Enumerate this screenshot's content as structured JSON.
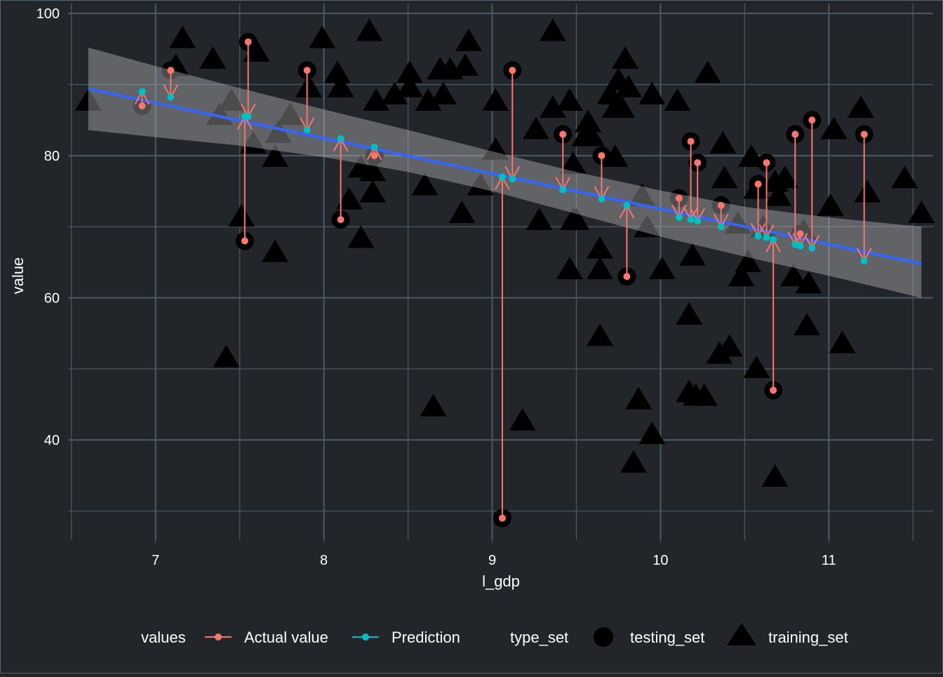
{
  "chart_data": {
    "type": "scatter",
    "title": "",
    "xlabel": "l_gdp",
    "ylabel": "value",
    "xlim": [
      6.48,
      11.62
    ],
    "ylim": [
      25.9,
      101.4
    ],
    "x_ticks": [
      7,
      8,
      9,
      10,
      11
    ],
    "x_tick_labels": [
      "7",
      "8",
      "9",
      "10",
      "11"
    ],
    "y_ticks": [
      40,
      60,
      80,
      100
    ],
    "y_tick_labels": [
      "40",
      "60",
      "80",
      "100"
    ],
    "grid": true,
    "colors": {
      "background": "#22262b",
      "grid": "#4a5a66",
      "actual": "#F8766D",
      "prediction": "#00BFC4",
      "fit_line": "#3366FF",
      "points": "#000000"
    },
    "regression": {
      "intercept": 122.2,
      "slope": -4.97,
      "x_range": [
        6.6,
        11.55
      ]
    },
    "confidence_band": {
      "x": [
        6.6,
        7.0,
        7.5,
        8.0,
        8.5,
        9.0,
        9.5,
        10.0,
        10.5,
        11.0,
        11.55
      ],
      "upper": [
        95.2,
        92.6,
        89.5,
        86.5,
        83.6,
        80.6,
        77.7,
        75.1,
        72.8,
        71.3,
        70.0
      ],
      "lower": [
        83.6,
        82.6,
        81.4,
        79.8,
        77.7,
        75.0,
        71.8,
        68.6,
        65.8,
        63.1,
        60.0
      ]
    },
    "testing_set": [
      {
        "x": 6.92,
        "actual": 87,
        "prediction": 89.0
      },
      {
        "x": 7.09,
        "actual": 92,
        "prediction": 88.2
      },
      {
        "x": 7.55,
        "actual": 96,
        "prediction": 85.5
      },
      {
        "x": 7.53,
        "actual": 68,
        "prediction": 85.5
      },
      {
        "x": 7.9,
        "actual": 92,
        "prediction": 83.6
      },
      {
        "x": 8.1,
        "actual": 71,
        "prediction": 82.4
      },
      {
        "x": 8.3,
        "actual": 80,
        "prediction": 81.2
      },
      {
        "x": 9.06,
        "actual": 29,
        "prediction": 77.0
      },
      {
        "x": 9.12,
        "actual": 92,
        "prediction": 76.7
      },
      {
        "x": 9.42,
        "actual": 83,
        "prediction": 75.2
      },
      {
        "x": 9.65,
        "actual": 80,
        "prediction": 73.9
      },
      {
        "x": 9.8,
        "actual": 63,
        "prediction": 73.0
      },
      {
        "x": 10.11,
        "actual": 74,
        "prediction": 71.3
      },
      {
        "x": 10.18,
        "actual": 82,
        "prediction": 71.0
      },
      {
        "x": 10.22,
        "actual": 79,
        "prediction": 70.8
      },
      {
        "x": 10.36,
        "actual": 73,
        "prediction": 70.0
      },
      {
        "x": 10.58,
        "actual": 76,
        "prediction": 68.7
      },
      {
        "x": 10.63,
        "actual": 79,
        "prediction": 68.5
      },
      {
        "x": 10.67,
        "actual": 47,
        "prediction": 68.2
      },
      {
        "x": 10.8,
        "actual": 83,
        "prediction": 67.5
      },
      {
        "x": 10.83,
        "actual": 69,
        "prediction": 67.3
      },
      {
        "x": 10.9,
        "actual": 85,
        "prediction": 67.0
      },
      {
        "x": 11.21,
        "actual": 83,
        "prediction": 65.2
      }
    ],
    "training_set": [
      [
        6.6,
        87.6
      ],
      [
        7.16,
        96.4
      ],
      [
        7.12,
        92.5
      ],
      [
        7.34,
        93.5
      ],
      [
        7.38,
        85.6
      ],
      [
        7.45,
        87.6
      ],
      [
        7.42,
        51.5
      ],
      [
        7.51,
        71.3
      ],
      [
        7.6,
        94.5
      ],
      [
        7.58,
        81.6
      ],
      [
        7.71,
        79.7
      ],
      [
        7.73,
        83.1
      ],
      [
        7.8,
        85.6
      ],
      [
        7.71,
        66.3
      ],
      [
        7.99,
        96.4
      ],
      [
        8.08,
        91.5
      ],
      [
        8.1,
        89.5
      ],
      [
        7.91,
        89.5
      ],
      [
        8.27,
        97.4
      ],
      [
        8.22,
        78.2
      ],
      [
        8.29,
        77.7
      ],
      [
        8.31,
        87.6
      ],
      [
        8.29,
        74.7
      ],
      [
        8.15,
        73.7
      ],
      [
        8.22,
        68.3
      ],
      [
        8.42,
        88.5
      ],
      [
        8.51,
        91.5
      ],
      [
        8.51,
        89.5
      ],
      [
        8.62,
        87.6
      ],
      [
        8.6,
        75.7
      ],
      [
        8.65,
        44.6
      ],
      [
        8.69,
        92.0
      ],
      [
        8.71,
        88.5
      ],
      [
        8.75,
        92.0
      ],
      [
        8.84,
        92.5
      ],
      [
        8.86,
        96.0
      ],
      [
        8.82,
        71.8
      ],
      [
        9.02,
        87.6
      ],
      [
        9.02,
        80.7
      ],
      [
        8.93,
        75.7
      ],
      [
        9.18,
        42.6
      ],
      [
        9.26,
        83.6
      ],
      [
        9.28,
        70.8
      ],
      [
        9.36,
        97.4
      ],
      [
        9.36,
        86.6
      ],
      [
        9.46,
        87.6
      ],
      [
        9.46,
        63.9
      ],
      [
        9.48,
        78.7
      ],
      [
        9.48,
        70.8
      ],
      [
        9.5,
        70.8
      ],
      [
        9.55,
        82.6
      ],
      [
        9.57,
        84.6
      ],
      [
        9.59,
        82.6
      ],
      [
        9.64,
        66.8
      ],
      [
        9.64,
        63.9
      ],
      [
        9.64,
        54.5
      ],
      [
        9.7,
        88.5
      ],
      [
        9.73,
        86.6
      ],
      [
        9.73,
        79.7
      ],
      [
        9.75,
        90.5
      ],
      [
        9.79,
        93.5
      ],
      [
        9.77,
        86.6
      ],
      [
        9.81,
        89.5
      ],
      [
        9.84,
        36.7
      ],
      [
        9.87,
        45.6
      ],
      [
        9.89,
        74.2
      ],
      [
        9.92,
        69.8
      ],
      [
        9.95,
        88.5
      ],
      [
        9.95,
        40.7
      ],
      [
        10.01,
        63.9
      ],
      [
        10.1,
        87.6
      ],
      [
        10.17,
        57.5
      ],
      [
        10.17,
        46.6
      ],
      [
        10.21,
        46.1
      ],
      [
        10.19,
        65.8
      ],
      [
        10.28,
        91.5
      ],
      [
        10.26,
        46.1
      ],
      [
        10.35,
        52.0
      ],
      [
        10.37,
        81.6
      ],
      [
        10.38,
        76.7
      ],
      [
        10.41,
        53.0
      ],
      [
        10.46,
        70.3
      ],
      [
        10.48,
        62.9
      ],
      [
        10.52,
        64.9
      ],
      [
        10.54,
        79.7
      ],
      [
        10.57,
        75.2
      ],
      [
        10.57,
        50.0
      ],
      [
        10.61,
        69.8
      ],
      [
        10.68,
        76.2
      ],
      [
        10.7,
        74.2
      ],
      [
        10.68,
        34.7
      ],
      [
        10.74,
        76.7
      ],
      [
        10.79,
        62.9
      ],
      [
        10.85,
        69.3
      ],
      [
        10.88,
        61.9
      ],
      [
        10.87,
        56.0
      ],
      [
        11.01,
        72.8
      ],
      [
        11.03,
        83.6
      ],
      [
        11.08,
        53.5
      ],
      [
        11.19,
        86.6
      ],
      [
        11.23,
        74.7
      ],
      [
        11.45,
        76.7
      ],
      [
        11.55,
        71.8
      ]
    ],
    "legend": {
      "placement": "bottom",
      "values_title": "values",
      "actual_label": "Actual value",
      "prediction_label": "Prediction",
      "type_title": "type_set",
      "testing_label": "testing_set",
      "training_label": "training_set"
    }
  }
}
